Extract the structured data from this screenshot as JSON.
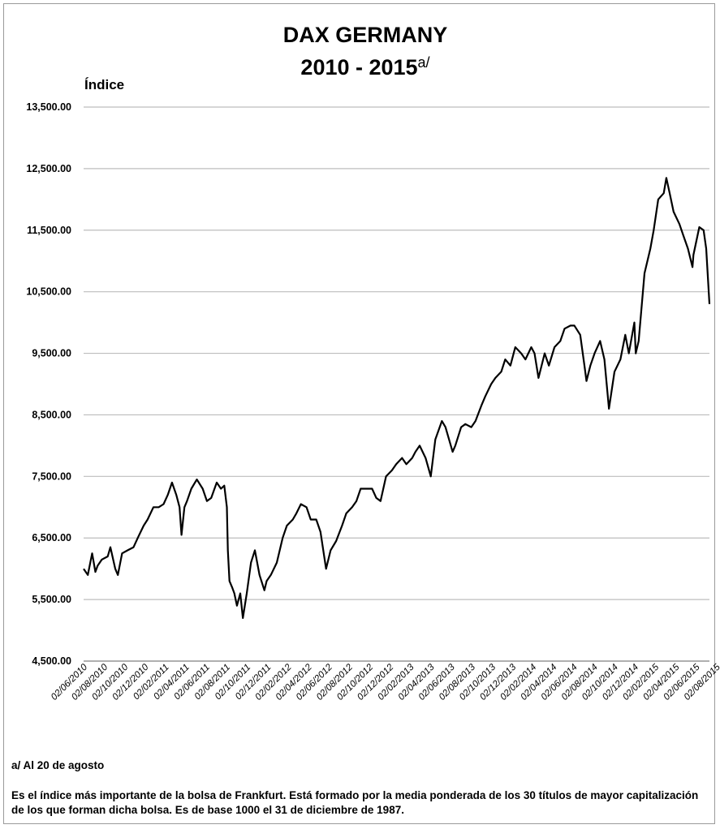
{
  "chart_data": {
    "type": "line",
    "title": "DAX GERMANY",
    "subtitle_main": "2010 - 2015",
    "subtitle_sup": "a/",
    "ylabel": "Índice",
    "xlabel": "",
    "ylim": [
      4500,
      13500
    ],
    "yticks": [
      4500,
      5500,
      6500,
      7500,
      8500,
      9500,
      10500,
      11500,
      12500,
      13500
    ],
    "ytick_labels": [
      "4,500.00",
      "5,500.00",
      "6,500.00",
      "7,500.00",
      "8,500.00",
      "9,500.00",
      "10,500.00",
      "11,500.00",
      "12,500.00",
      "13,500.00"
    ],
    "x_start": "2010-05-20",
    "x_end": "2015-08-20",
    "xtick_labels": [
      "02/06/2010",
      "02/08/2010",
      "02/10/2010",
      "02/12/2010",
      "02/02/2011",
      "02/04/2011",
      "02/06/2011",
      "02/08/2011",
      "02/10/2011",
      "02/12/2011",
      "02/02/2012",
      "02/04/2012",
      "02/06/2012",
      "02/08/2012",
      "02/10/2012",
      "02/12/2012",
      "02/02/2013",
      "02/04/2013",
      "02/06/2013",
      "02/08/2013",
      "02/10/2013",
      "02/12/2013",
      "02/02/2014",
      "02/04/2014",
      "02/06/2014",
      "02/08/2014",
      "02/10/2014",
      "02/12/2014",
      "02/02/2015",
      "02/04/2015",
      "02/06/2015",
      "02/08/2015"
    ],
    "grid": "horizontal",
    "legend": "none",
    "line_color": "#000000",
    "series": [
      {
        "x": [
          "2010-05-20",
          "2010-06-02",
          "2010-06-15",
          "2010-06-25",
          "2010-07-02",
          "2010-07-15",
          "2010-08-02",
          "2010-08-10",
          "2010-08-25",
          "2010-09-02",
          "2010-09-15",
          "2010-10-02",
          "2010-10-20",
          "2010-11-02",
          "2010-11-20",
          "2010-12-02",
          "2010-12-20",
          "2011-01-05",
          "2011-01-20",
          "2011-02-02",
          "2011-02-15",
          "2011-02-28",
          "2011-03-10",
          "2011-03-16",
          "2011-03-25",
          "2011-04-02",
          "2011-04-15",
          "2011-05-02",
          "2011-05-20",
          "2011-06-02",
          "2011-06-15",
          "2011-07-02",
          "2011-07-15",
          "2011-07-25",
          "2011-08-02",
          "2011-08-05",
          "2011-08-10",
          "2011-08-18",
          "2011-08-25",
          "2011-09-02",
          "2011-09-12",
          "2011-09-20",
          "2011-10-02",
          "2011-10-15",
          "2011-10-27",
          "2011-11-10",
          "2011-11-25",
          "2011-12-02",
          "2011-12-15",
          "2012-01-02",
          "2012-01-20",
          "2012-02-02",
          "2012-02-20",
          "2012-03-02",
          "2012-03-16",
          "2012-04-02",
          "2012-04-15",
          "2012-05-02",
          "2012-05-15",
          "2012-06-01",
          "2012-06-15",
          "2012-07-02",
          "2012-07-20",
          "2012-08-02",
          "2012-08-20",
          "2012-09-02",
          "2012-09-15",
          "2012-10-02",
          "2012-10-20",
          "2012-11-02",
          "2012-11-15",
          "2012-12-02",
          "2012-12-20",
          "2013-01-02",
          "2013-01-20",
          "2013-02-02",
          "2013-02-20",
          "2013-03-02",
          "2013-03-15",
          "2013-04-02",
          "2013-04-18",
          "2013-05-02",
          "2013-05-22",
          "2013-06-02",
          "2013-06-24",
          "2013-07-02",
          "2013-07-20",
          "2013-08-02",
          "2013-08-20",
          "2013-09-02",
          "2013-09-20",
          "2013-10-02",
          "2013-10-20",
          "2013-11-02",
          "2013-11-20",
          "2013-12-02",
          "2013-12-18",
          "2014-01-02",
          "2014-01-20",
          "2014-02-02",
          "2014-02-20",
          "2014-03-02",
          "2014-03-14",
          "2014-04-02",
          "2014-04-15",
          "2014-05-02",
          "2014-05-20",
          "2014-06-02",
          "2014-06-20",
          "2014-07-02",
          "2014-07-20",
          "2014-08-02",
          "2014-08-08",
          "2014-08-20",
          "2014-09-02",
          "2014-09-19",
          "2014-10-02",
          "2014-10-16",
          "2014-11-02",
          "2014-11-20",
          "2014-12-05",
          "2014-12-16",
          "2015-01-02",
          "2015-01-06",
          "2015-01-15",
          "2015-02-02",
          "2015-02-20",
          "2015-03-02",
          "2015-03-16",
          "2015-04-02",
          "2015-04-10",
          "2015-04-20",
          "2015-05-02",
          "2015-05-20",
          "2015-06-02",
          "2015-06-15",
          "2015-06-29",
          "2015-07-02",
          "2015-07-20",
          "2015-08-02",
          "2015-08-10",
          "2015-08-20"
        ],
        "y": [
          6000,
          5900,
          6250,
          5950,
          6050,
          6150,
          6200,
          6350,
          6000,
          5900,
          6250,
          6300,
          6350,
          6500,
          6700,
          6800,
          7000,
          7000,
          7050,
          7200,
          7400,
          7200,
          7000,
          6550,
          7000,
          7100,
          7300,
          7450,
          7300,
          7100,
          7150,
          7400,
          7300,
          7350,
          7000,
          6300,
          5800,
          5700,
          5600,
          5400,
          5600,
          5200,
          5600,
          6100,
          6300,
          5900,
          5650,
          5800,
          5900,
          6100,
          6500,
          6700,
          6800,
          6900,
          7050,
          7000,
          6800,
          6800,
          6600,
          6000,
          6300,
          6450,
          6700,
          6900,
          7000,
          7100,
          7300,
          7300,
          7300,
          7150,
          7100,
          7500,
          7600,
          7700,
          7800,
          7700,
          7800,
          7900,
          8000,
          7800,
          7500,
          8100,
          8400,
          8300,
          7900,
          8000,
          8300,
          8350,
          8300,
          8400,
          8650,
          8800,
          9000,
          9100,
          9200,
          9400,
          9300,
          9600,
          9500,
          9400,
          9600,
          9500,
          9100,
          9500,
          9300,
          9600,
          9700,
          9900,
          9950,
          9950,
          9800,
          9300,
          9050,
          9300,
          9500,
          9700,
          9400,
          8600,
          9200,
          9400,
          9800,
          9500,
          10000,
          9500,
          9700,
          10800,
          11200,
          11500,
          12000,
          12100,
          12350,
          12100,
          11800,
          11600,
          11400,
          11200,
          10900,
          11100,
          11550,
          11500,
          11200,
          10300
        ]
      }
    ]
  },
  "footnote": "a/ Al 20 de agosto",
  "description": "Es el índice más importante de la bolsa de Frankfurt. Está formado por la media ponderada de los 30 títulos de mayor capitalización de los que forman dicha bolsa. Es de base 1000 el 31 de diciembre de 1987."
}
